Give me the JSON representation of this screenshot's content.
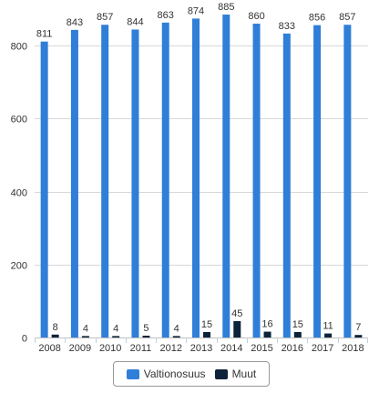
{
  "chart_data": {
    "type": "bar",
    "categories": [
      "2008",
      "2009",
      "2010",
      "2011",
      "2012",
      "2013",
      "2014",
      "2015",
      "2016",
      "2017",
      "2018"
    ],
    "series": [
      {
        "name": "Valtionosuus",
        "color": "#2f7ed8",
        "values": [
          811,
          843,
          857,
          844,
          863,
          874,
          885,
          860,
          833,
          856,
          857
        ]
      },
      {
        "name": "Muut",
        "color": "#0d233a",
        "values": [
          8,
          4,
          4,
          5,
          4,
          15,
          45,
          16,
          15,
          11,
          7
        ]
      }
    ],
    "ylim": [
      0,
      900
    ],
    "yticks": [
      0,
      200,
      400,
      600,
      800
    ],
    "grid": true,
    "legend": "bottom-center",
    "title": "",
    "xlabel": "",
    "ylabel": ""
  }
}
